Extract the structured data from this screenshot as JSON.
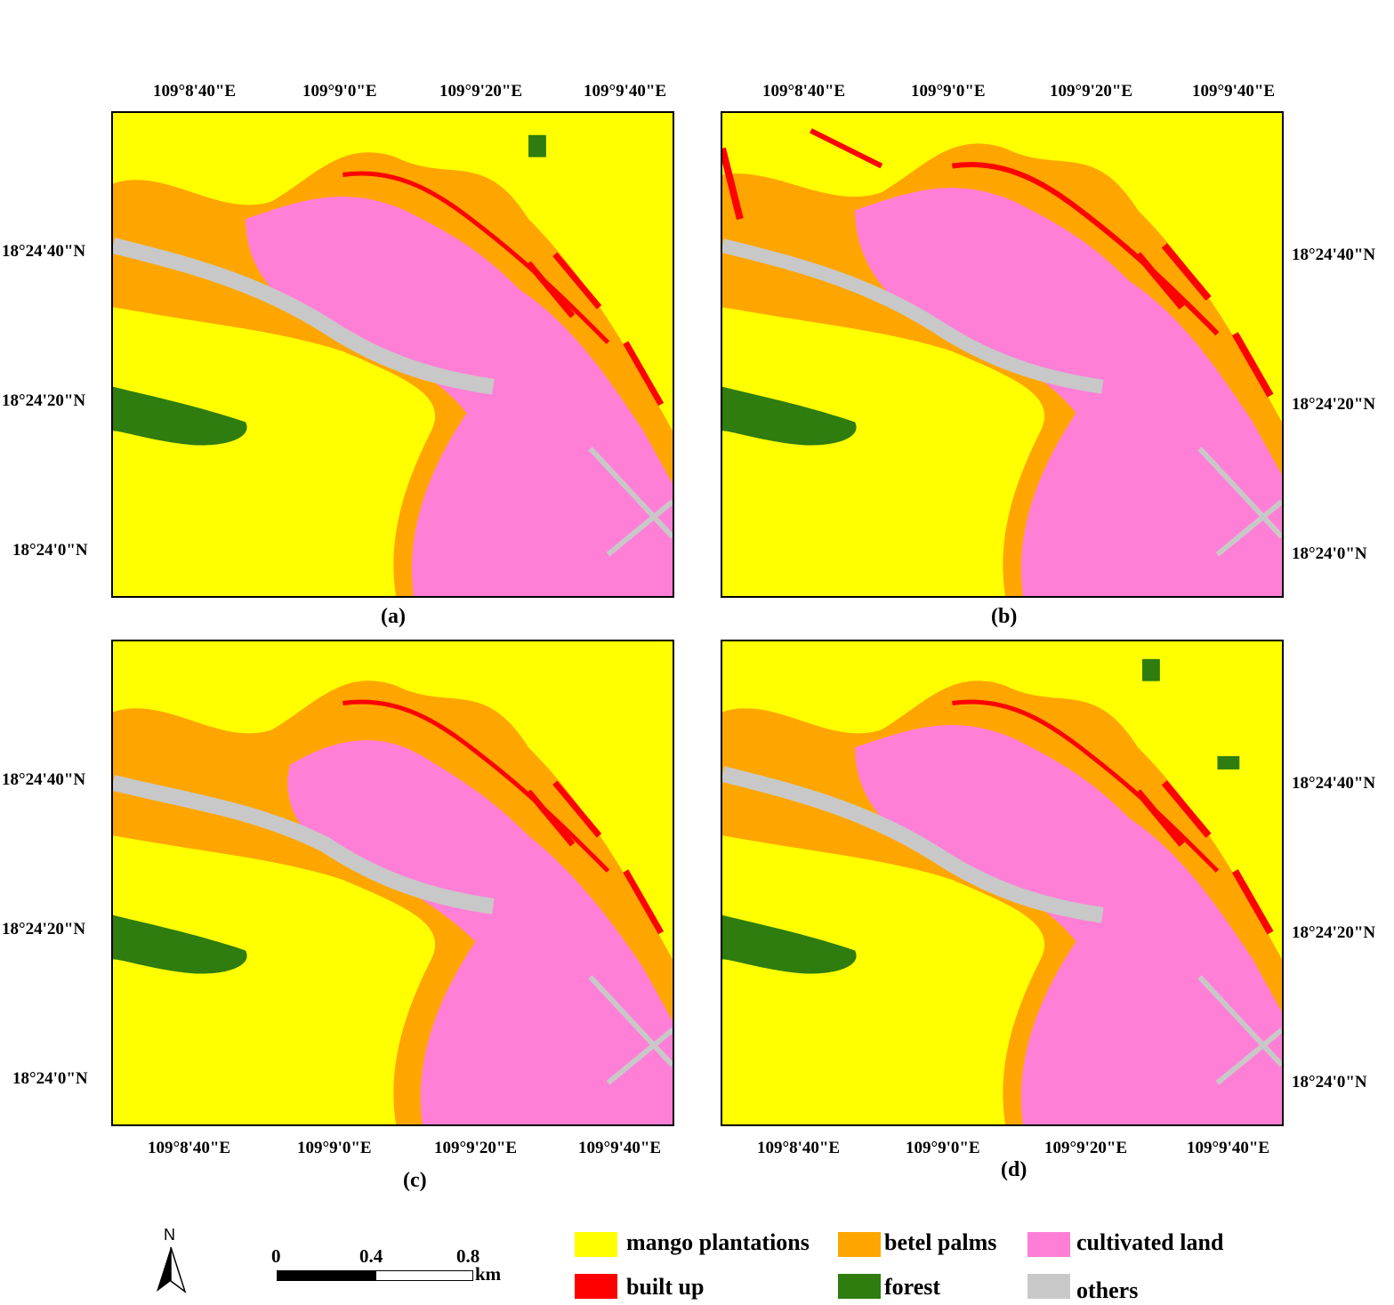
{
  "panels": [
    {
      "caption": "(a)",
      "top_labels": [
        "109°8'40\"E",
        "109°9'0\"E",
        "109°9'20\"E",
        "109°9'40\"E"
      ],
      "left_labels": [
        "18°24'40\"N",
        "18°24'20\"N",
        "18°24'0\"N"
      ]
    },
    {
      "caption": "(b)",
      "top_labels": [
        "109°8'40\"E",
        "109°9'0\"E",
        "109°9'20\"E",
        "109°9'40\"E"
      ],
      "right_labels": [
        "18°24'40\"N",
        "18°24'20\"N",
        "18°24'0\"N"
      ]
    },
    {
      "caption": "(c)",
      "bottom_labels": [
        "109°8'40\"E",
        "109°9'0\"E",
        "109°9'20\"E",
        "109°9'40\"E"
      ],
      "left_labels": [
        "18°24'40\"N",
        "18°24'20\"N",
        "18°24'0\"N"
      ]
    },
    {
      "caption": "(d)",
      "bottom_labels": [
        "109°8'40\"E",
        "109°9'0\"E",
        "109°9'20\"E",
        "109°9'40\"E"
      ],
      "right_labels": [
        "18°24'40\"N",
        "18°24'20\"N",
        "18°24'0\"N"
      ]
    }
  ],
  "legend": [
    {
      "label": "mango plantations",
      "color": "#ffff00"
    },
    {
      "label": "betel palms",
      "color": "#ffa500"
    },
    {
      "label": "cultivated land",
      "color": "#ff7fd6"
    },
    {
      "label": "built up",
      "color": "#ff0000"
    },
    {
      "label": "forest",
      "color": "#2e7d0e"
    },
    {
      "label": "others",
      "color": "#c8c8c8"
    }
  ],
  "north_arrow": {
    "label": "N",
    "icon": "north-arrow-icon"
  },
  "scale_bar": {
    "ticks": [
      "0",
      "0.4",
      "0.8"
    ],
    "unit": "km"
  }
}
